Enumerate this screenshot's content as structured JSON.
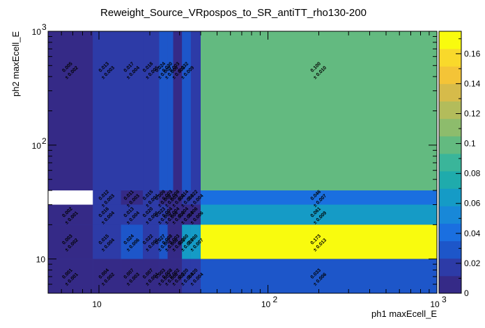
{
  "chart_data": {
    "type": "heatmap",
    "title": "Reweight_Source_VRpospos_to_SR_antiTT_rho130-200",
    "xlabel": "ph1 maxEcell_E",
    "ylabel": "ph2 maxEcell_E",
    "xscale": "log",
    "yscale": "log",
    "xlim": [
      5,
      1000
    ],
    "ylim": [
      5,
      1000
    ],
    "x_ticks": [
      {
        "value": 10,
        "label": "10"
      },
      {
        "value": 100,
        "label": "10"
      },
      {
        "value": 1000,
        "label": "10"
      }
    ],
    "x_tick_exponents": [
      "",
      "2",
      "3"
    ],
    "y_ticks": [
      {
        "value": 10,
        "label": "10"
      },
      {
        "value": 100,
        "label": "10"
      },
      {
        "value": 1000,
        "label": "10"
      }
    ],
    "y_tick_exponents": [
      "",
      "2",
      "3"
    ],
    "x_edges": [
      5,
      9.2,
      13.5,
      18.2,
      22.7,
      25.5,
      27.5,
      31,
      35,
      40,
      1000
    ],
    "y_edges": [
      5,
      10,
      20,
      30,
      40,
      1000
    ],
    "cells": [
      {
        "i": 0,
        "j": 4,
        "value": 0.005,
        "error": 0.002
      },
      {
        "i": 1,
        "j": 4,
        "value": 0.013,
        "error": 0.003
      },
      {
        "i": 2,
        "j": 4,
        "value": 0.017,
        "error": 0.004
      },
      {
        "i": 3,
        "j": 4,
        "value": 0.018,
        "error": 0.005
      },
      {
        "i": 4,
        "j": 4,
        "value": 0.024,
        "error": 0.005
      },
      {
        "i": 5,
        "j": 4,
        "value": 0.03,
        "error": 0.006
      },
      {
        "i": 6,
        "j": 4,
        "value": 0.003,
        "error": 0.003
      },
      {
        "i": 7,
        "j": 4,
        "value": 0.032,
        "error": 0.009
      },
      {
        "i": 9,
        "j": 4,
        "value": 0.1,
        "error": 0.01
      },
      {
        "i": 1,
        "j": 3,
        "value": 0.012,
        "error": 0.003
      },
      {
        "i": 2,
        "j": 3,
        "value": 0.011,
        "error": 0.003
      },
      {
        "i": 3,
        "j": 3,
        "value": 0.015,
        "error": 0.004
      },
      {
        "i": 4,
        "j": 3,
        "value": 0.009,
        "error": 0.004
      },
      {
        "i": 5,
        "j": 3,
        "value": 0.003,
        "error": 0.003
      },
      {
        "i": 6,
        "j": 3,
        "value": 0.008,
        "error": 0.004
      },
      {
        "i": 7,
        "j": 3,
        "value": 0.014,
        "error": 0.006
      },
      {
        "i": 8,
        "j": 3,
        "value": 0.022,
        "error": 0.004
      },
      {
        "i": 9,
        "j": 3,
        "value": 0.046,
        "error": 0.007
      },
      {
        "i": 0,
        "j": 2,
        "value": 0.002,
        "error": 0.001
      },
      {
        "i": 1,
        "j": 2,
        "value": 0.016,
        "error": 0.004
      },
      {
        "i": 2,
        "j": 2,
        "value": 0.013,
        "error": 0.004
      },
      {
        "i": 3,
        "j": 2,
        "value": 0.02,
        "error": 0.006
      },
      {
        "i": 4,
        "j": 2,
        "value": 0.023,
        "error": 0.005
      },
      {
        "i": 5,
        "j": 2,
        "value": 0.004,
        "error": 0.004
      },
      {
        "i": 6,
        "j": 2,
        "value": 0.004,
        "error": 0.004
      },
      {
        "i": 7,
        "j": 2,
        "value": 0.004,
        "error": 0.004
      },
      {
        "i": 8,
        "j": 2,
        "value": 0.006,
        "error": 0.006
      },
      {
        "i": 9,
        "j": 2,
        "value": 0.061,
        "error": 0.009
      },
      {
        "i": 0,
        "j": 1,
        "value": 0.003,
        "error": 0.002
      },
      {
        "i": 1,
        "j": 1,
        "value": 0.015,
        "error": 0.004
      },
      {
        "i": 2,
        "j": 1,
        "value": 0.024,
        "error": 0.006
      },
      {
        "i": 3,
        "j": 1,
        "value": 0.022,
        "error": 0.006
      },
      {
        "i": 4,
        "j": 1,
        "value": 0.027,
        "error": 0.007
      },
      {
        "i": 5,
        "j": 1,
        "value": 0.008,
        "error": 0.008
      },
      {
        "i": 6,
        "j": 1,
        "value": 0.003,
        "error": 0.003
      },
      {
        "i": 7,
        "j": 1,
        "value": 0.06,
        "error": 0.007
      },
      {
        "i": 8,
        "j": 1,
        "value": 0.06,
        "error": 0.007
      },
      {
        "i": 9,
        "j": 1,
        "value": 0.173,
        "error": 0.013
      },
      {
        "i": 0,
        "j": 0,
        "value": 0.001,
        "error": 0.001
      },
      {
        "i": 1,
        "j": 0,
        "value": 0.004,
        "error": 0.002
      },
      {
        "i": 2,
        "j": 0,
        "value": 0.007,
        "error": 0.003
      },
      {
        "i": 3,
        "j": 0,
        "value": 0.007,
        "error": 0.004
      },
      {
        "i": 4,
        "j": 0,
        "value": 0.003,
        "error": 0.003
      },
      {
        "i": 5,
        "j": 0,
        "value": 0.008,
        "error": 0.008
      },
      {
        "i": 6,
        "j": 0,
        "value": 0.002,
        "error": 0.002
      },
      {
        "i": 7,
        "j": 0,
        "value": 0.02,
        "error": 0.004
      },
      {
        "i": 8,
        "j": 0,
        "value": 0.02,
        "error": 0.004
      },
      {
        "i": 9,
        "j": 0,
        "value": 0.033,
        "error": 0.006
      }
    ],
    "colorbar": {
      "min": 0,
      "max": 0.175,
      "ticks": [
        0,
        0.02,
        0.04,
        0.06,
        0.08,
        0.1,
        0.12,
        0.14,
        0.16
      ],
      "tick_labels": [
        "0",
        "0.02",
        "0.04",
        "0.06",
        "0.08",
        "0.1",
        "0.12",
        "0.14",
        "0.16"
      ],
      "stops": [
        "#352a87",
        "#2d3ba7",
        "#1d56c9",
        "#1a6fe0",
        "#1888d8",
        "#159bc6",
        "#1fabac",
        "#3ab59a",
        "#63ba80",
        "#8dbc6c",
        "#b3bc5b",
        "#d6bb4a",
        "#f4c437",
        "#f9d92b",
        "#f9fb0e"
      ]
    }
  }
}
